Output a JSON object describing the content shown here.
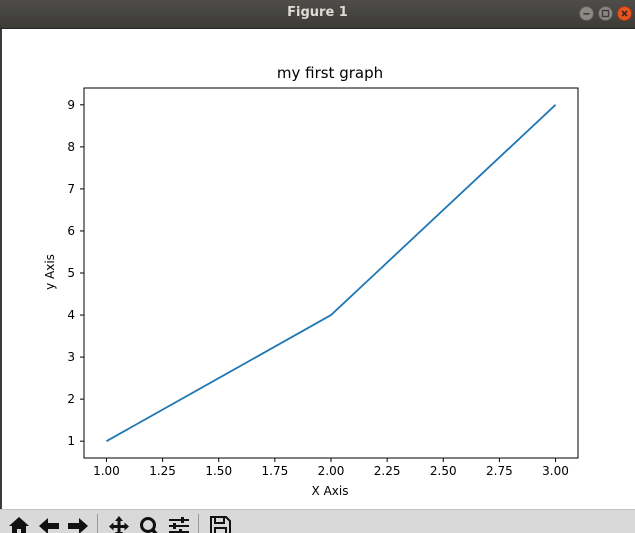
{
  "window": {
    "title": "Figure 1",
    "controls": [
      "minimize-icon",
      "maximize-icon",
      "close-icon"
    ]
  },
  "toolbar": {
    "buttons": [
      {
        "name": "home-button",
        "icon": "home-icon"
      },
      {
        "name": "back-button",
        "icon": "arrow-left-icon"
      },
      {
        "name": "forward-button",
        "icon": "arrow-right-icon"
      },
      {
        "name": "pan-button",
        "icon": "move-icon"
      },
      {
        "name": "zoom-button",
        "icon": "magnifier-icon"
      },
      {
        "name": "configure-subplots-button",
        "icon": "sliders-icon"
      },
      {
        "name": "save-button",
        "icon": "floppy-disk-icon"
      }
    ]
  },
  "colors": {
    "line": "#1f77b4",
    "titlebar": "#3c3b37",
    "close": "#e95420",
    "toolbar": "#d9d9d9"
  },
  "chart_data": {
    "type": "line",
    "title": "my first graph",
    "xlabel": "X Axis",
    "ylabel": "y Axis",
    "x": [
      1,
      2,
      3
    ],
    "series": [
      {
        "values": [
          1,
          4,
          9
        ]
      }
    ],
    "xlim": [
      0.9,
      3.1
    ],
    "ylim": [
      0.6,
      9.4
    ],
    "xticks": [
      "1.00",
      "1.25",
      "1.50",
      "1.75",
      "2.00",
      "2.25",
      "2.50",
      "2.75",
      "3.00"
    ],
    "yticks": [
      "1",
      "2",
      "3",
      "4",
      "5",
      "6",
      "7",
      "8",
      "9"
    ],
    "grid": false,
    "legend": "none"
  }
}
